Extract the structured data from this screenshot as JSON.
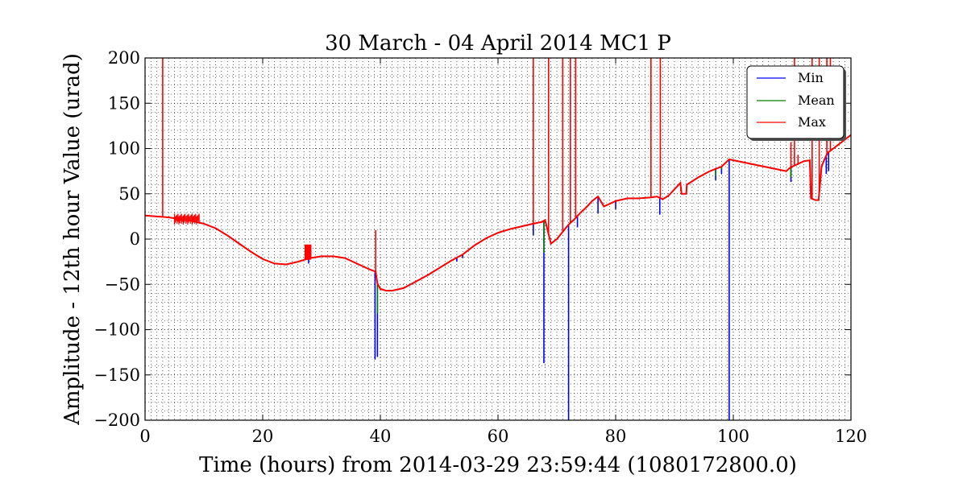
{
  "chart_data": {
    "type": "line",
    "title": "30 March - 04 April 2014 MC1 P",
    "xlabel": "Time (hours) from 2014-03-29 23:59:44 (1080172800.0)",
    "ylabel": "Amplitude - 12th hour Value (urad)",
    "xlim": [
      0,
      120
    ],
    "ylim": [
      -200,
      200
    ],
    "xticks": [
      0,
      20,
      40,
      60,
      80,
      100,
      120
    ],
    "yticks": [
      -200,
      -150,
      -100,
      -50,
      0,
      50,
      100,
      150,
      200
    ],
    "xtick_labels": [
      "0",
      "20",
      "40",
      "60",
      "80",
      "100",
      "120"
    ],
    "ytick_labels": [
      "−200",
      "−150",
      "−100",
      "−50",
      "0",
      "50",
      "100",
      "150",
      "200"
    ],
    "grid": true,
    "legend_position": "top-right",
    "baseline": {
      "x": [
        0,
        2,
        4,
        6,
        8,
        10,
        12,
        14,
        16,
        18,
        20,
        22,
        24,
        26,
        28,
        30,
        32,
        34,
        36,
        38,
        39.2,
        39.5,
        40,
        41,
        42,
        44,
        46,
        48,
        50,
        52,
        54,
        56,
        58,
        60,
        62,
        64,
        66,
        67.5,
        68,
        69,
        70,
        71,
        72,
        73,
        74,
        75,
        76,
        77,
        78,
        80,
        82,
        84,
        86,
        87,
        88,
        89,
        90,
        91,
        91.2,
        92,
        92.1,
        94,
        96,
        98,
        99.3,
        109,
        109.5,
        110,
        111,
        112,
        113,
        113.2,
        114,
        114.5,
        115,
        115.5,
        116,
        117,
        118,
        119,
        120
      ],
      "y": [
        26,
        25,
        24,
        22,
        20,
        17,
        12,
        4,
        -5,
        -14,
        -22,
        -27,
        -28,
        -25,
        -21,
        -19,
        -19,
        -21,
        -27,
        -33,
        -36,
        -49,
        -55,
        -57,
        -57,
        -54,
        -47,
        -40,
        -32,
        -24,
        -17,
        -7,
        1,
        7,
        11,
        14,
        17,
        19,
        21,
        -5,
        0,
        8,
        16,
        22,
        29,
        35,
        42,
        47,
        36,
        42,
        45,
        45,
        46,
        47,
        44,
        48,
        55,
        62,
        50,
        50,
        60,
        68,
        75,
        80,
        88,
        75,
        78,
        80,
        83,
        86,
        87,
        45,
        43,
        43,
        80,
        88,
        95,
        100,
        105,
        110,
        115
      ]
    },
    "series": [
      {
        "name": "Min",
        "color": "#0000ff",
        "excursions": [
          [
            27.8,
            -27
          ],
          [
            39.1,
            -133
          ],
          [
            39.5,
            -130
          ],
          [
            51,
            -27
          ],
          [
            53,
            -25
          ],
          [
            54,
            -21
          ],
          [
            66,
            4
          ],
          [
            67.8,
            -137
          ],
          [
            72,
            -200
          ],
          [
            73.5,
            13
          ],
          [
            77,
            28
          ],
          [
            80,
            33
          ],
          [
            87.5,
            27
          ],
          [
            97,
            65
          ],
          [
            98,
            72
          ],
          [
            99.3,
            -200
          ],
          [
            109.8,
            63
          ],
          [
            113.2,
            53
          ],
          [
            115.8,
            72
          ],
          [
            116.2,
            75
          ]
        ]
      },
      {
        "name": "Mean",
        "color": "#008000",
        "excursions": [
          [
            39.5,
            -82
          ],
          [
            67.8,
            -15
          ],
          [
            97,
            70
          ],
          [
            98,
            77
          ],
          [
            109.8,
            68
          ],
          [
            113.2,
            58
          ]
        ]
      },
      {
        "name": "Max",
        "color": "#ff0000",
        "excursions": [
          [
            3,
            200
          ],
          [
            39.2,
            10
          ],
          [
            66,
            200
          ],
          [
            68.6,
            200
          ],
          [
            71,
            200
          ],
          [
            72.3,
            200
          ],
          [
            73.2,
            200
          ],
          [
            86,
            200
          ],
          [
            87.6,
            200
          ],
          [
            109.8,
            107
          ],
          [
            110.4,
            200
          ],
          [
            111,
            93
          ],
          [
            113.4,
            200
          ],
          [
            114.6,
            200
          ],
          [
            115.9,
            200
          ],
          [
            116.5,
            200
          ]
        ]
      }
    ],
    "bursts": [
      {
        "x": [
          5,
          9.2
        ],
        "y": [
          16,
          28
        ]
      },
      {
        "x": [
          27.2,
          28.2
        ],
        "y": [
          -23,
          -6
        ]
      }
    ]
  }
}
